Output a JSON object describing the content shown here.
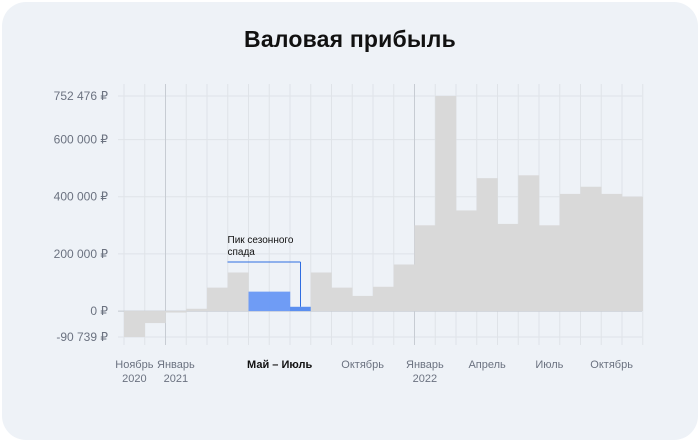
{
  "chart_data": {
    "type": "bar",
    "title": "Валовая прибыль",
    "xlabel": "",
    "ylabel": "",
    "ylim": [
      -90739,
      752476
    ],
    "y_ticks": [
      {
        "value": 752476,
        "label": "752 476 ₽"
      },
      {
        "value": 600000,
        "label": "600 000 ₽"
      },
      {
        "value": 400000,
        "label": "400 000 ₽"
      },
      {
        "value": 200000,
        "label": "200 000 ₽"
      },
      {
        "value": 0,
        "label": "0 ₽"
      },
      {
        "value": -90739,
        "label": "-90 739 ₽"
      }
    ],
    "categories": [
      "2020-11",
      "2020-12",
      "2021-01",
      "2021-02",
      "2021-03",
      "2021-04",
      "2021-05",
      "2021-06",
      "2021-07",
      "2021-08",
      "2021-09",
      "2021-10",
      "2021-11",
      "2021-12",
      "2022-01",
      "2022-02",
      "2022-03",
      "2022-04",
      "2022-05",
      "2022-06",
      "2022-07",
      "2022-08",
      "2022-09",
      "2022-10",
      "2022-11"
    ],
    "values": [
      -90739,
      -42000,
      -3000,
      8000,
      82000,
      135000,
      68000,
      68000,
      15000,
      135000,
      82000,
      53000,
      85000,
      163000,
      300000,
      752476,
      352000,
      465000,
      305000,
      475000,
      300000,
      410000,
      435000,
      410000,
      400000
    ],
    "highlight": {
      "categories": [
        "2021-05",
        "2021-06",
        "2021-07"
      ],
      "color": "#6f9cf5",
      "label_text": "Май – Июль"
    },
    "annotation": {
      "lines": [
        "Пик сезонного",
        "спада"
      ],
      "category": "2021-07"
    },
    "x_tick_labels": [
      {
        "category": "2020-11",
        "lines": [
          "Ноябрь",
          "2020"
        ]
      },
      {
        "category": "2021-01",
        "lines": [
          "Январь",
          "2021"
        ]
      },
      {
        "category": "2021-10",
        "lines": [
          "Октябрь"
        ]
      },
      {
        "category": "2022-01",
        "lines": [
          "Январь",
          "2022"
        ]
      },
      {
        "category": "2022-04",
        "lines": [
          "Апрель"
        ]
      },
      {
        "category": "2022-07",
        "lines": [
          "Июль"
        ]
      },
      {
        "category": "2022-10",
        "lines": [
          "Октябрь"
        ]
      }
    ],
    "year_dividers": [
      "2021-01",
      "2022-01"
    ],
    "grid": true,
    "colors": {
      "bar": "#d9d9d9",
      "highlight": "#6f9cf5",
      "highlight_small": "#5b8ff0",
      "grid": "#dfe3e8",
      "divider": "#c7ccd3",
      "annotation_line": "#2f6de1"
    }
  }
}
